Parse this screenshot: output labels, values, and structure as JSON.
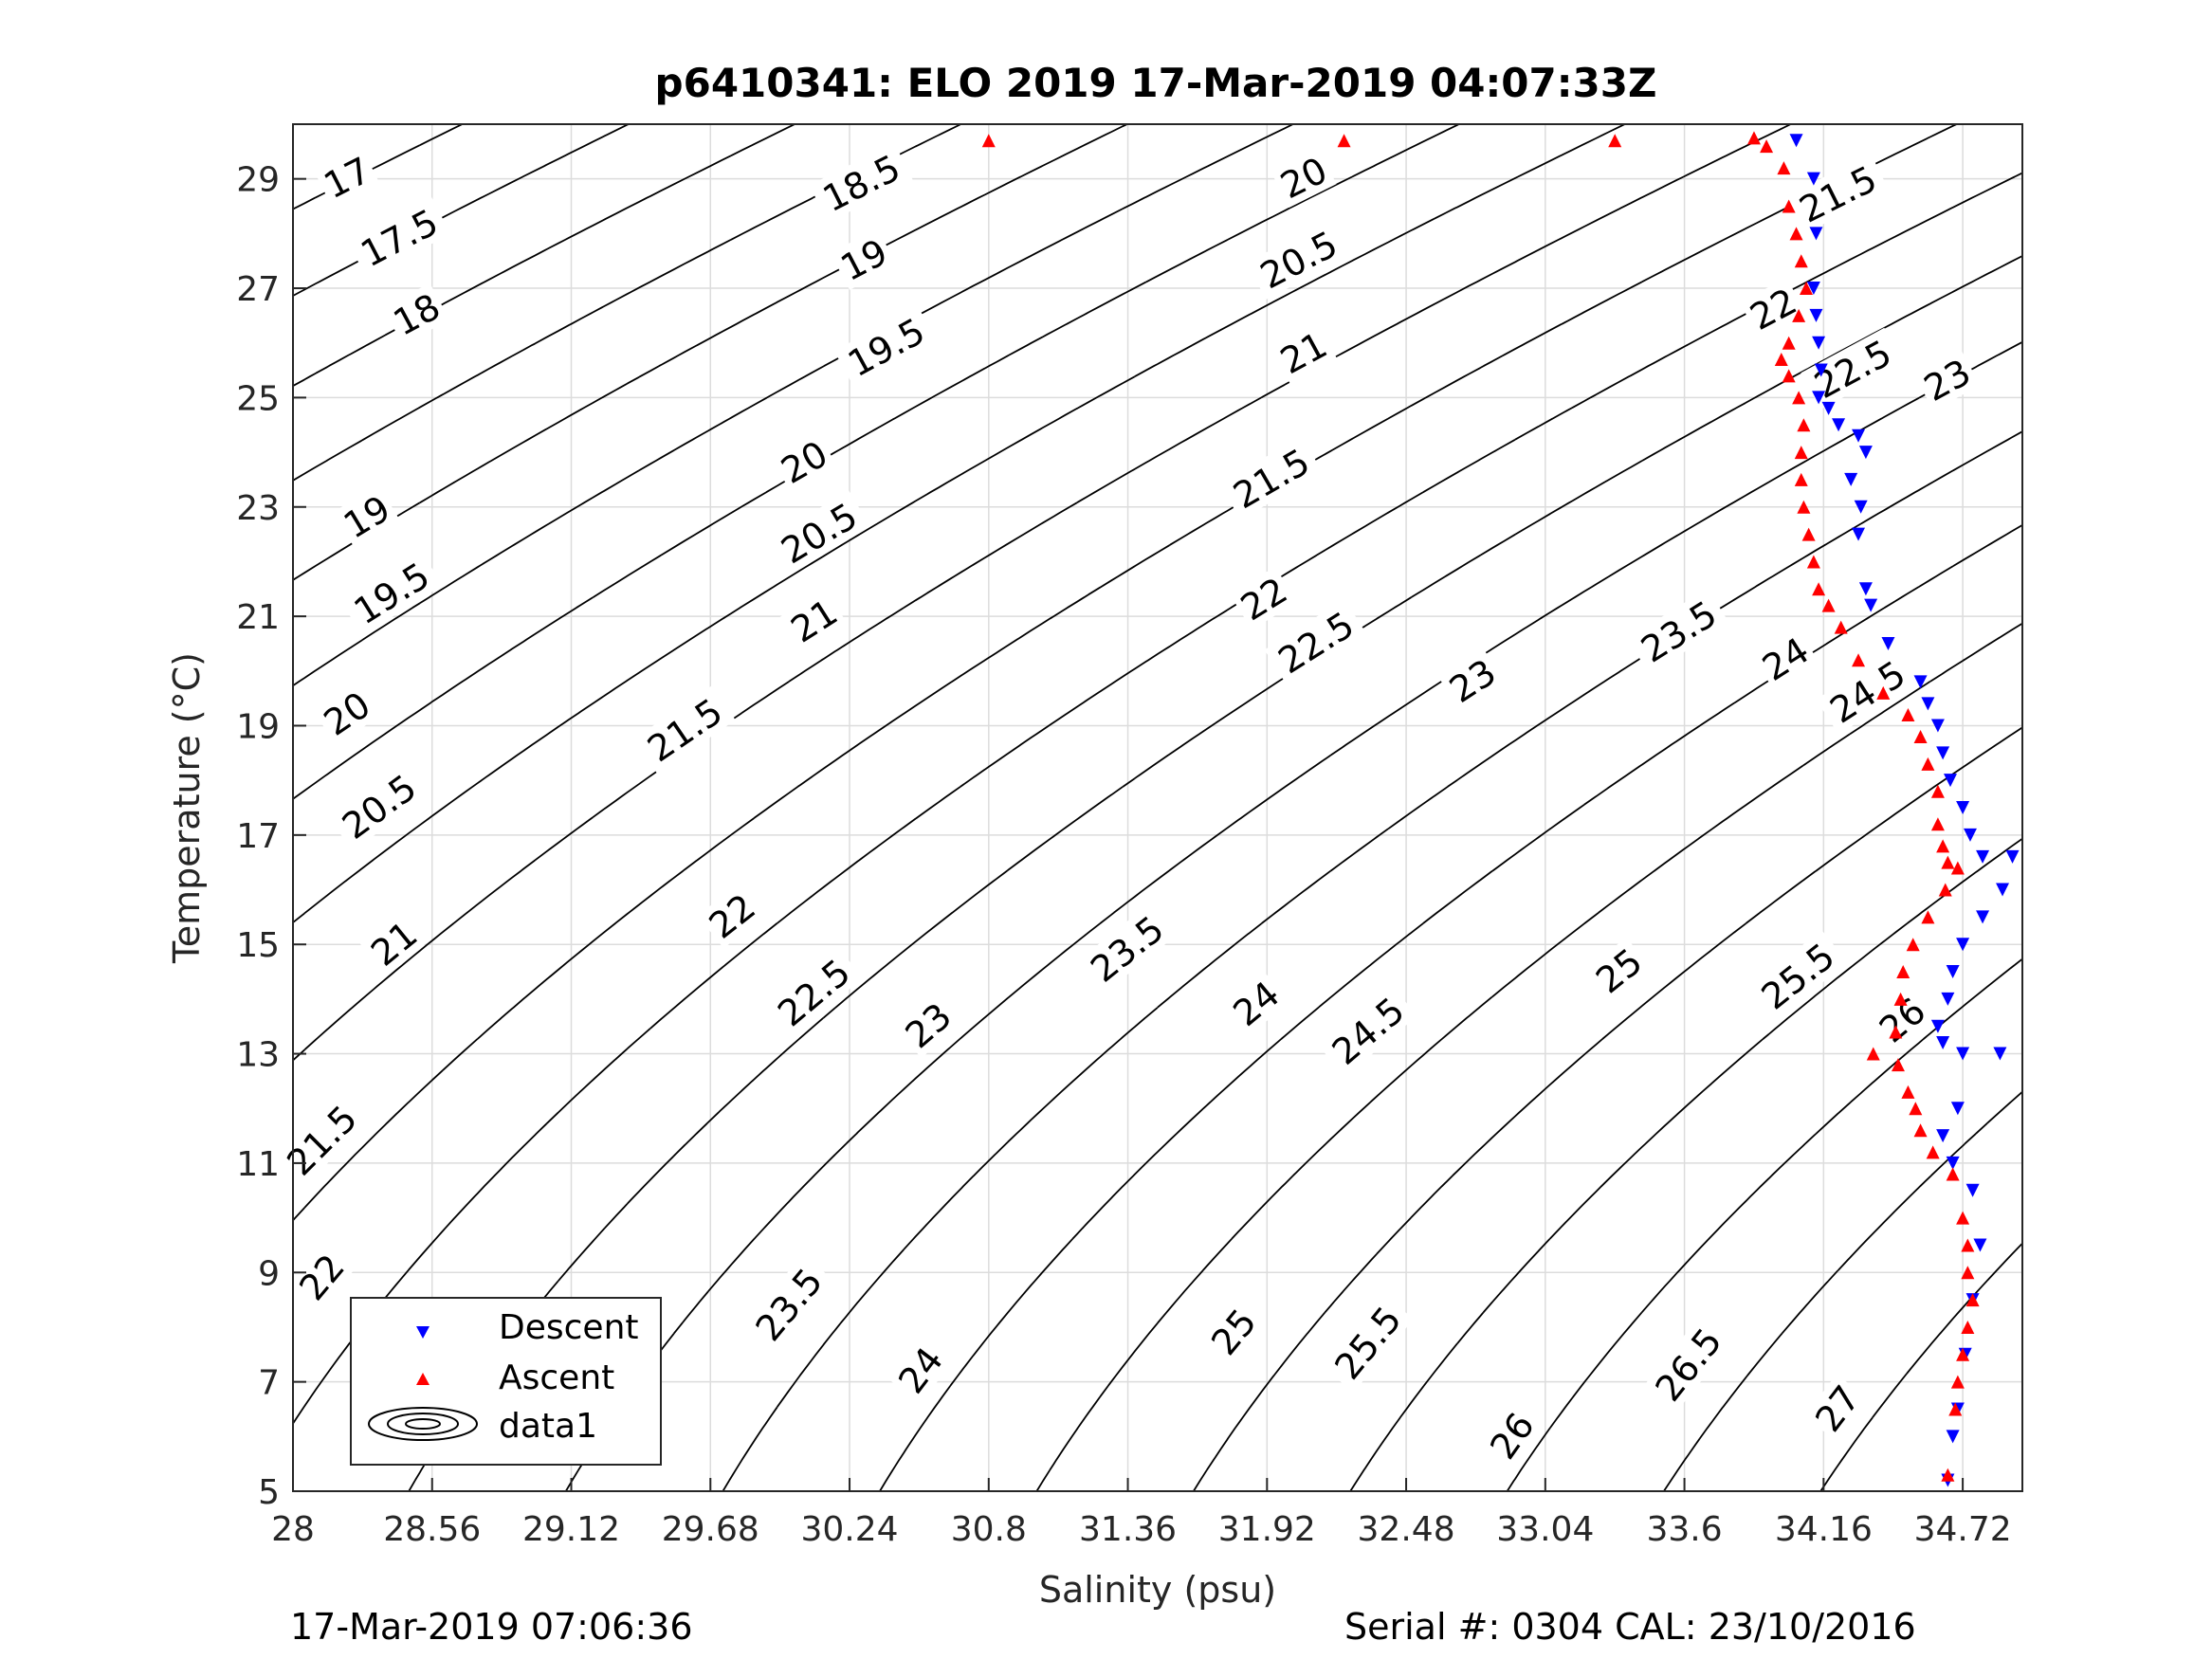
{
  "chart_data": {
    "type": "scatter",
    "title": "p6410341: ELO 2019 17-Mar-2019 04:07:33Z",
    "xlabel": "Salinity (psu)",
    "ylabel": "Temperature (°C)",
    "xlim": [
      28,
      34.96
    ],
    "ylim": [
      5,
      30
    ],
    "x_ticks": [
      "28",
      "28.56",
      "29.12",
      "29.68",
      "30.24",
      "30.8",
      "31.36",
      "31.92",
      "32.48",
      "33.04",
      "33.6",
      "34.16",
      "34.72"
    ],
    "y_ticks": [
      "5",
      "7",
      "9",
      "11",
      "13",
      "15",
      "17",
      "19",
      "21",
      "23",
      "25",
      "27",
      "29"
    ],
    "grid": true,
    "legend": {
      "placement": "lower-left",
      "entries": [
        {
          "name": "Descent",
          "color": "#0000ff",
          "marker": "triangle-down"
        },
        {
          "name": "Ascent",
          "color": "#ff0000",
          "marker": "triangle-up"
        },
        {
          "name": "data1",
          "color": "#000000",
          "marker": "contour"
        }
      ]
    },
    "contours": {
      "levels": [
        17,
        17.5,
        18,
        18.5,
        19,
        19.5,
        20,
        20.5,
        21,
        21.5,
        22,
        22.5,
        23,
        23.5,
        24,
        24.5,
        25,
        25.5,
        26,
        26.5,
        27
      ],
      "labels": [
        {
          "text": "17",
          "s": 28.22,
          "t": 29.0
        },
        {
          "text": "17.5",
          "s": 28.43,
          "t": 27.9
        },
        {
          "text": "18",
          "s": 28.5,
          "t": 26.5
        },
        {
          "text": "18.5",
          "s": 30.29,
          "t": 28.9
        },
        {
          "text": "19",
          "s": 30.3,
          "t": 27.5
        },
        {
          "text": "19.5",
          "s": 30.39,
          "t": 25.9
        },
        {
          "text": "20",
          "s": 32.07,
          "t": 29.0
        },
        {
          "text": "20.5",
          "s": 32.05,
          "t": 27.5
        },
        {
          "text": "21",
          "s": 32.07,
          "t": 25.8
        },
        {
          "text": "21.5",
          "s": 34.22,
          "t": 28.7
        },
        {
          "text": "22",
          "s": 33.96,
          "t": 26.6
        },
        {
          "text": "22.5",
          "s": 34.28,
          "t": 25.5
        },
        {
          "text": "23",
          "s": 34.66,
          "t": 25.3
        },
        {
          "text": "19",
          "s": 28.3,
          "t": 22.8
        },
        {
          "text": "19.5",
          "s": 28.4,
          "t": 21.4
        },
        {
          "text": "20",
          "s": 30.06,
          "t": 23.8
        },
        {
          "text": "20.5",
          "s": 30.12,
          "t": 22.5
        },
        {
          "text": "21",
          "s": 30.1,
          "t": 20.9
        },
        {
          "text": "21.5",
          "s": 31.94,
          "t": 23.5
        },
        {
          "text": "22",
          "s": 31.91,
          "t": 21.3
        },
        {
          "text": "22.5",
          "s": 32.12,
          "t": 20.5
        },
        {
          "text": "23",
          "s": 32.75,
          "t": 19.8
        },
        {
          "text": "23.5",
          "s": 33.58,
          "t": 20.7
        },
        {
          "text": "24",
          "s": 34.01,
          "t": 20.2
        },
        {
          "text": "24.5",
          "s": 34.34,
          "t": 19.6
        },
        {
          "text": "20",
          "s": 28.22,
          "t": 19.2
        },
        {
          "text": "20.5",
          "s": 28.35,
          "t": 17.5
        },
        {
          "text": "21",
          "s": 28.41,
          "t": 15.0
        },
        {
          "text": "21.5",
          "s": 29.58,
          "t": 18.9
        },
        {
          "text": "22",
          "s": 29.77,
          "t": 15.5
        },
        {
          "text": "22.5",
          "s": 30.1,
          "t": 14.1
        },
        {
          "text": "23",
          "s": 30.56,
          "t": 13.5
        },
        {
          "text": "23.5",
          "s": 31.36,
          "t": 14.9
        },
        {
          "text": "24",
          "s": 31.88,
          "t": 13.9
        },
        {
          "text": "24.5",
          "s": 32.33,
          "t": 13.4
        },
        {
          "text": "25",
          "s": 33.34,
          "t": 14.5
        },
        {
          "text": "25.5",
          "s": 34.06,
          "t": 14.4
        },
        {
          "text": "26",
          "s": 34.48,
          "t": 13.6
        },
        {
          "text": "21.5",
          "s": 28.12,
          "t": 11.4
        },
        {
          "text": "22",
          "s": 28.12,
          "t": 8.9
        },
        {
          "text": "22.5",
          "s": 28.72,
          "t": 7.5
        },
        {
          "text": "23",
          "s": 29.23,
          "t": 6.9
        },
        {
          "text": "23.5",
          "s": 30.0,
          "t": 8.4
        },
        {
          "text": "24",
          "s": 30.53,
          "t": 7.2
        },
        {
          "text": "25",
          "s": 31.79,
          "t": 7.9
        },
        {
          "text": "25.5",
          "s": 32.33,
          "t": 7.7
        },
        {
          "text": "26",
          "s": 32.91,
          "t": 6.0
        },
        {
          "text": "26.5",
          "s": 33.62,
          "t": 7.3
        },
        {
          "text": "27",
          "s": 34.22,
          "t": 6.5
        }
      ]
    },
    "series": [
      {
        "name": "Descent",
        "color": "#0000ff",
        "marker": "triangle-down",
        "x": [
          34.05,
          34.12,
          34.13,
          34.12,
          34.13,
          34.14,
          34.15,
          34.14,
          34.18,
          34.22,
          34.3,
          34.33,
          34.27,
          34.31,
          34.3,
          34.33,
          34.35,
          34.42,
          34.55,
          34.58,
          34.62,
          34.64,
          34.67,
          34.72,
          34.75,
          34.8,
          34.92,
          34.88,
          34.8,
          34.72,
          34.68,
          34.66,
          34.62,
          34.64,
          34.72,
          34.87,
          34.7,
          34.64,
          34.68,
          34.76,
          34.79,
          34.76,
          34.73,
          34.7,
          34.68,
          34.66
        ],
        "y": [
          29.7,
          29.0,
          28.0,
          27.0,
          26.5,
          26.0,
          25.5,
          25.0,
          24.8,
          24.5,
          24.3,
          24.0,
          23.5,
          23.0,
          22.5,
          21.5,
          21.2,
          20.5,
          19.8,
          19.4,
          19.0,
          18.5,
          18.0,
          17.5,
          17.0,
          16.6,
          16.6,
          16.0,
          15.5,
          15.0,
          14.5,
          14.0,
          13.5,
          13.2,
          13.0,
          13.0,
          12.0,
          11.5,
          11.0,
          10.5,
          9.5,
          8.5,
          7.5,
          6.5,
          6.0,
          5.2
        ]
      },
      {
        "name": "Ascent",
        "color": "#ff0000",
        "marker": "triangle-up",
        "x": [
          30.8,
          32.23,
          33.32,
          33.88,
          33.93,
          34.0,
          34.02,
          34.05,
          34.07,
          34.09,
          34.06,
          34.02,
          33.99,
          34.02,
          34.06,
          34.08,
          34.07,
          34.07,
          34.08,
          34.1,
          34.12,
          34.14,
          34.18,
          34.23,
          34.3,
          34.4,
          34.5,
          34.55,
          34.58,
          34.62,
          34.62,
          34.64,
          34.66,
          34.7,
          34.65,
          34.58,
          34.52,
          34.48,
          34.47,
          34.45,
          34.36,
          34.46,
          34.5,
          34.53,
          34.55,
          34.6,
          34.68,
          34.72,
          34.74,
          34.74,
          34.76,
          34.74,
          34.72,
          34.7,
          34.69,
          34.66
        ],
        "y": [
          29.7,
          29.7,
          29.7,
          29.75,
          29.6,
          29.2,
          28.5,
          28.0,
          27.5,
          27.0,
          26.5,
          26.0,
          25.7,
          25.4,
          25.0,
          24.5,
          24.0,
          23.5,
          23.0,
          22.5,
          22.0,
          21.5,
          21.2,
          20.8,
          20.2,
          19.6,
          19.2,
          18.8,
          18.3,
          17.8,
          17.2,
          16.8,
          16.5,
          16.4,
          16.0,
          15.5,
          15.0,
          14.5,
          14.0,
          13.4,
          13.0,
          12.8,
          12.3,
          12.0,
          11.6,
          11.2,
          10.8,
          10.0,
          9.5,
          9.0,
          8.5,
          8.0,
          7.5,
          7.0,
          6.5,
          5.3
        ]
      }
    ]
  },
  "footer": {
    "left": "17-Mar-2019 07:06:36",
    "right": "Serial #: 0304  CAL: 23/10/2016"
  }
}
